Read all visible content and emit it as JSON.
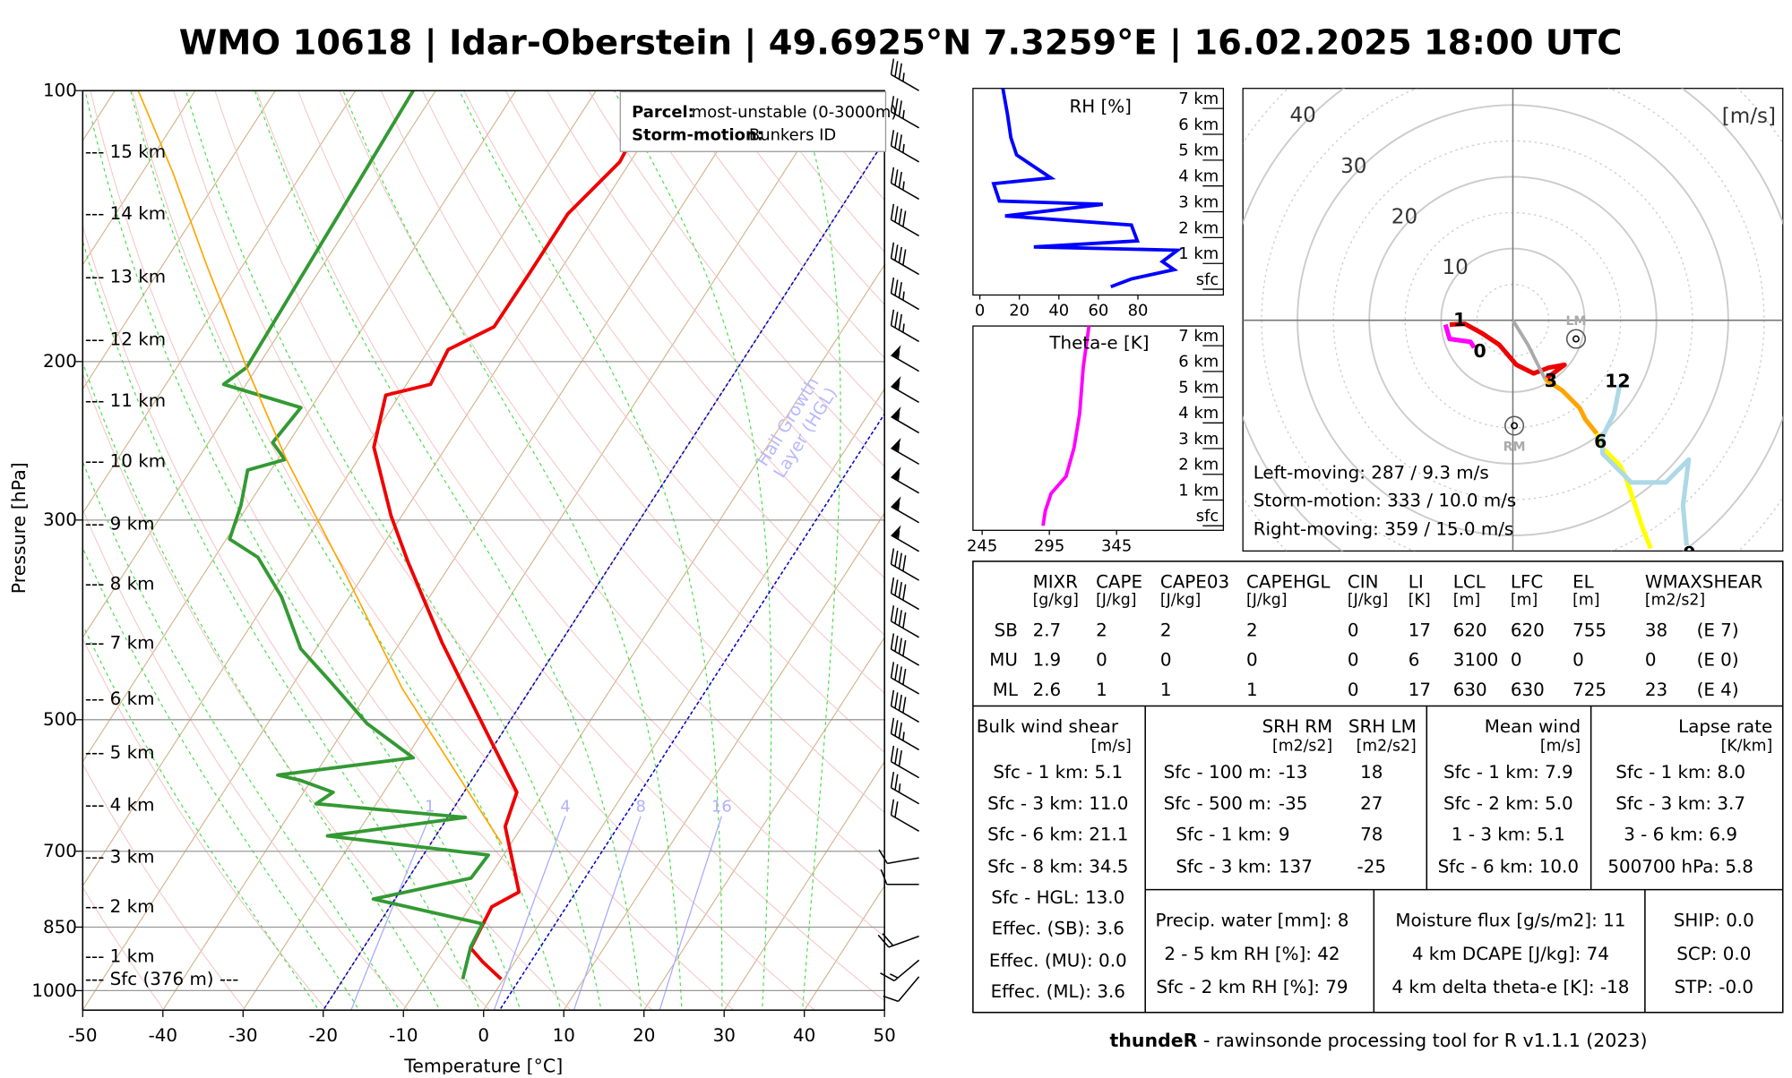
{
  "title": "WMO 10618 | Idar-Oberstein | 49.6925°N 7.3259°E | 16.02.2025 18:00 UTC",
  "footer": {
    "bold": "thundeR",
    "text": " - rawinsonde processing tool for R v1.1.1 (2023)"
  },
  "legend": {
    "parcel_label": "Parcel:",
    "parcel_value": "most-unstable (0-3000m)",
    "storm_label": "Storm-motion:",
    "storm_value": "Bunkers ID"
  },
  "colors": {
    "temperature": "#ee0000",
    "dewpoint": "#339933",
    "parcel": "#ffa500",
    "rh": "#0000ff",
    "theta_e": "#ff00ff",
    "hgl": "#0000cc"
  },
  "chart_data": [
    {
      "type": "line",
      "name": "skewt",
      "xlabel": "Temperature [°C]",
      "ylabel": "Pressure [hPa]",
      "xlim": [
        -50,
        50
      ],
      "ylim": [
        1050,
        100
      ],
      "xticks": [
        "-50",
        "-40",
        "-30",
        "-20",
        "-10",
        "0",
        "10",
        "20",
        "30",
        "40",
        "50"
      ],
      "yticks": [
        "100",
        "200",
        "300",
        "500",
        "700",
        "850",
        "1000"
      ],
      "height_labels": [
        {
          "p": 117,
          "label": "--- 15 km"
        },
        {
          "p": 137,
          "label": "--- 14 km"
        },
        {
          "p": 161,
          "label": "--- 13 km"
        },
        {
          "p": 189,
          "label": "--- 12 km"
        },
        {
          "p": 221,
          "label": "--- 11 km"
        },
        {
          "p": 258,
          "label": "--- 10 km"
        },
        {
          "p": 303,
          "label": "--- 9 km"
        },
        {
          "p": 353,
          "label": "--- 8 km"
        },
        {
          "p": 411,
          "label": "--- 7 km"
        },
        {
          "p": 474,
          "label": "--- 6 km"
        },
        {
          "p": 544,
          "label": "--- 5 km"
        },
        {
          "p": 622,
          "label": "--- 4 km"
        },
        {
          "p": 710,
          "label": "--- 3 km"
        },
        {
          "p": 807,
          "label": "--- 2 km"
        },
        {
          "p": 916,
          "label": "--- 1 km"
        },
        {
          "p": 971,
          "label": "--- Sfc (376 m) ---"
        }
      ],
      "mixing_ratio_labels": [
        "1",
        "4",
        "8",
        "16"
      ],
      "mixing_ratio_values": [
        1,
        4,
        8,
        16
      ],
      "hgl_label": "Hail Growth\nLayer (HGL)",
      "hgl_label_lines": [
        "Hail Growth",
        "Layer (HGL)"
      ],
      "hgl_isotherms": [
        -20,
        2
      ],
      "series": [
        {
          "name": "Temperature",
          "points": [
            [
              971,
              -0.3
            ],
            [
              929,
              -4.0
            ],
            [
              897,
              -6.6
            ],
            [
              807,
              -7.3
            ],
            [
              777,
              -5.1
            ],
            [
              657,
              -12.1
            ],
            [
              602,
              -13.4
            ],
            [
              520,
              -21.6
            ],
            [
              462,
              -28.2
            ],
            [
              411,
              -34.7
            ],
            [
              334,
              -45.5
            ],
            [
              297,
              -51.3
            ],
            [
              249,
              -59.0
            ],
            [
              218,
              -61.7
            ],
            [
              212,
              -57.0
            ],
            [
              194,
              -57.6
            ],
            [
              183,
              -53.7
            ],
            [
              160,
              -53.6
            ],
            [
              137,
              -53.6
            ],
            [
              120,
              -51.3
            ],
            [
              100,
              -52.3
            ]
          ]
        },
        {
          "name": "Dewpoint",
          "points": [
            [
              971,
              -5.1
            ],
            [
              894,
              -6.7
            ],
            [
              843,
              -7.1
            ],
            [
              791,
              -22.7
            ],
            [
              750,
              -12.2
            ],
            [
              707,
              -11.9
            ],
            [
              673,
              -33.5
            ],
            [
              642,
              -17.8
            ],
            [
              620,
              -37.5
            ],
            [
              602,
              -36.3
            ],
            [
              584,
              -41.3
            ],
            [
              576,
              -44.6
            ],
            [
              551,
              -29.1
            ],
            [
              505,
              -37.6
            ],
            [
              449,
              -46.3
            ],
            [
              417,
              -51.9
            ],
            [
              365,
              -58.5
            ],
            [
              330,
              -64.6
            ],
            [
              315,
              -69.6
            ],
            [
              289,
              -70.9
            ],
            [
              264,
              -72.9
            ],
            [
              257,
              -69.1
            ],
            [
              246,
              -72.0
            ],
            [
              225,
              -71.3
            ],
            [
              212,
              -82.8
            ],
            [
              203,
              -81.3
            ],
            [
              131,
              -82.2
            ],
            [
              100,
              -82.8
            ]
          ]
        },
        {
          "name": "Parcel",
          "points": [
            [
              687,
              -11.1
            ],
            [
              462,
              -36.0
            ],
            [
              344,
              -52.4
            ],
            [
              257,
              -68.9
            ],
            [
              203,
              -81.3
            ],
            [
              156,
              -94.6
            ],
            [
              123,
              -106.3
            ],
            [
              100,
              -117.1
            ]
          ]
        }
      ],
      "wind_barbs": [
        {
          "p": 100,
          "spd": 35,
          "dir": 300
        },
        {
          "p": 110,
          "spd": 35,
          "dir": 300
        },
        {
          "p": 120,
          "spd": 35,
          "dir": 300
        },
        {
          "p": 132,
          "spd": 35,
          "dir": 300
        },
        {
          "p": 145,
          "spd": 40,
          "dir": 300
        },
        {
          "p": 160,
          "spd": 40,
          "dir": 300
        },
        {
          "p": 175,
          "spd": 35,
          "dir": 300
        },
        {
          "p": 190,
          "spd": 35,
          "dir": 300
        },
        {
          "p": 205,
          "spd": 55,
          "dir": 300
        },
        {
          "p": 222,
          "spd": 55,
          "dir": 300
        },
        {
          "p": 240,
          "spd": 55,
          "dir": 300
        },
        {
          "p": 260,
          "spd": 55,
          "dir": 300
        },
        {
          "p": 280,
          "spd": 55,
          "dir": 300
        },
        {
          "p": 302,
          "spd": 55,
          "dir": 300
        },
        {
          "p": 325,
          "spd": 55,
          "dir": 300
        },
        {
          "p": 350,
          "spd": 40,
          "dir": 300
        },
        {
          "p": 377,
          "spd": 40,
          "dir": 300
        },
        {
          "p": 405,
          "spd": 40,
          "dir": 300
        },
        {
          "p": 435,
          "spd": 40,
          "dir": 300
        },
        {
          "p": 468,
          "spd": 40,
          "dir": 300
        },
        {
          "p": 503,
          "spd": 40,
          "dir": 300
        },
        {
          "p": 540,
          "spd": 35,
          "dir": 300
        },
        {
          "p": 580,
          "spd": 30,
          "dir": 300
        },
        {
          "p": 620,
          "spd": 25,
          "dir": 300
        },
        {
          "p": 665,
          "spd": 20,
          "dir": 300
        },
        {
          "p": 712,
          "spd": 10,
          "dir": 260
        },
        {
          "p": 762,
          "spd": 10,
          "dir": 270
        },
        {
          "p": 870,
          "spd": 20,
          "dir": 250
        },
        {
          "p": 925,
          "spd": 15,
          "dir": 230
        },
        {
          "p": 965,
          "spd": 10,
          "dir": 220
        }
      ]
    },
    {
      "type": "line",
      "name": "rh_profile",
      "title": "RH [%]",
      "xlim": [
        0,
        100
      ],
      "xticks": [
        "0",
        "20",
        "40",
        "60",
        "80"
      ],
      "yticks": [
        "7 km",
        "6 km",
        "5 km",
        "4 km",
        "3 km",
        "2 km",
        "1 km",
        "sfc"
      ],
      "points": [
        [
          11.6,
          7.38
        ],
        [
          14,
          6.36
        ],
        [
          15.7,
          5.47
        ],
        [
          18.6,
          4.8
        ],
        [
          36,
          3.91
        ],
        [
          7,
          3.69
        ],
        [
          9.9,
          3.02
        ],
        [
          62.2,
          2.89
        ],
        [
          12.8,
          2.44
        ],
        [
          76.7,
          2.09
        ],
        [
          79.7,
          1.47
        ],
        [
          27.3,
          1.24
        ],
        [
          100,
          1.11
        ],
        [
          92.4,
          0.67
        ],
        [
          98.3,
          0.36
        ],
        [
          76.7,
          0
        ],
        [
          66.3,
          -0.3
        ]
      ]
    },
    {
      "type": "line",
      "name": "theta_e_profile",
      "title": "Theta-e [K]",
      "xlim": [
        238,
        425
      ],
      "xticks": [
        "245",
        "295",
        "345"
      ],
      "yticks": [
        "7 km",
        "6 km",
        "5 km",
        "4 km",
        "3 km",
        "2 km",
        "1 km",
        "sfc"
      ],
      "points": [
        [
          324.5,
          7.37
        ],
        [
          320.2,
          5.76
        ],
        [
          317.6,
          3.97
        ],
        [
          313.4,
          2.63
        ],
        [
          307.4,
          1.52
        ],
        [
          296.3,
          0.85
        ],
        [
          292,
          0.18
        ],
        [
          290.3,
          -0.4
        ]
      ]
    },
    {
      "type": "line",
      "name": "hodograph",
      "unit_label": "[m/s]",
      "ring_labels": [
        "10",
        "20",
        "30",
        "40"
      ],
      "series": [
        {
          "name": "0-1 km",
          "color": "#ff00ff",
          "uv": [
            [
              -9.4,
              -0.6
            ],
            [
              -8.8,
              -2.6
            ],
            [
              -5.9,
              -3.0
            ],
            [
              -5.4,
              -3.8
            ]
          ]
        },
        {
          "name": "1-3 km",
          "color": "#ee0000",
          "uv": [
            [
              -8.8,
              -0.6
            ],
            [
              -6.7,
              -0.5
            ],
            [
              -4.3,
              -1.8
            ],
            [
              -1.9,
              -3.4
            ],
            [
              0.5,
              -6.2
            ],
            [
              2.9,
              -7.4
            ],
            [
              5.0,
              -6.6
            ],
            [
              7.2,
              -6.2
            ],
            [
              5.6,
              -7.4
            ],
            [
              4.5,
              -8.2
            ]
          ]
        },
        {
          "name": "shear",
          "color": "#aaaaaa",
          "uv": [
            [
              0,
              0
            ],
            [
              2.1,
              -3.4
            ],
            [
              4.5,
              -8.2
            ]
          ]
        },
        {
          "name": "3-6 km",
          "color": "#ffa500",
          "uv": [
            [
              4.5,
              -8.2
            ],
            [
              6.9,
              -9.8
            ],
            [
              9.3,
              -12.2
            ],
            [
              10.1,
              -13.8
            ],
            [
              11.7,
              -15.8
            ]
          ]
        },
        {
          "name": "6-9 km",
          "color": "#ffff00",
          "uv": [
            [
              11.7,
              -15.8
            ],
            [
              12.5,
              -17.8
            ],
            [
              14.9,
              -20.2
            ],
            [
              15.7,
              -21.8
            ],
            [
              16.5,
              -24.2
            ],
            [
              18.1,
              -29
            ],
            [
              19.2,
              -31.8
            ]
          ]
        },
        {
          "name": "9-12 km",
          "color": "#add8e6",
          "uv": [
            [
              14.9,
              -9
            ],
            [
              14.1,
              -13
            ],
            [
              12.5,
              -16.2
            ],
            [
              12.5,
              -18.6
            ],
            [
              16.5,
              -22.6
            ],
            [
              21.3,
              -22.6
            ],
            [
              24.5,
              -19.4
            ],
            [
              23.7,
              -25.8
            ],
            [
              24.2,
              -31.4
            ]
          ]
        }
      ],
      "height_marks": [
        {
          "label": "1",
          "u": -7.4,
          "v": 0.2
        },
        {
          "label": "0",
          "u": -4.6,
          "v": -4.2
        },
        {
          "label": "3",
          "u": 5.3,
          "v": -8.3
        },
        {
          "label": "6",
          "u": 12.2,
          "v": -16.8
        },
        {
          "label": "12",
          "u": 14.6,
          "v": -8.4
        },
        {
          "label": "9",
          "u": 24.6,
          "v": -32.4
        }
      ],
      "markers": [
        {
          "label": "LM",
          "u": 8.8,
          "v": -2.6
        },
        {
          "label": "RM",
          "u": 0.2,
          "v": -14.7
        }
      ],
      "summary": [
        "Left-moving: 287 / 9.3 m/s",
        "Storm-motion: 333 / 10.0 m/s",
        "Right-moving: 359 / 15.0 m/s"
      ]
    }
  ],
  "params": {
    "headers": [
      "MIXR",
      "CAPE",
      "CAPE03",
      "CAPEHGL",
      "CIN",
      "LI",
      "LCL",
      "LFC",
      "EL",
      "WMAXSHEAR"
    ],
    "units": [
      "[g/kg]",
      "[J/kg]",
      "[J/kg]",
      "[J/kg]",
      "[J/kg]",
      "[K]",
      "[m]",
      "[m]",
      "[m]",
      "[m2/s2]"
    ],
    "rows": [
      {
        "label": "SB",
        "values": [
          "2.7",
          "2",
          "2",
          "2",
          "0",
          "17",
          "620",
          "620",
          "755",
          "38"
        ],
        "extra": "(E 7)"
      },
      {
        "label": "MU",
        "values": [
          "1.9",
          "0",
          "0",
          "0",
          "0",
          "6",
          "3100",
          "0",
          "0",
          "0"
        ],
        "extra": "(E 0)"
      },
      {
        "label": "ML",
        "values": [
          "2.6",
          "1",
          "1",
          "1",
          "0",
          "17",
          "630",
          "630",
          "725",
          "23"
        ],
        "extra": "(E 4)"
      }
    ]
  },
  "bulk_shear": {
    "title": "Bulk wind shear",
    "unit": "[m/s]",
    "rows": [
      "Sfc - 1 km: 5.1",
      "Sfc - 3 km: 11.0",
      "Sfc - 6 km: 21.1",
      "Sfc - 8 km: 34.5",
      "Sfc - HGL: 13.0",
      "Effec. (SB): 3.6",
      "Effec. (MU): 0.0",
      "Effec. (ML): 3.6"
    ]
  },
  "srh": {
    "title_rm": "SRH RM",
    "title_lm": "SRH LM",
    "unit_rm": "[m2/s2]",
    "unit_lm": "[m2/s2]",
    "rows": [
      {
        "label": "Sfc - 100 m:",
        "rm": "-13",
        "lm": "18"
      },
      {
        "label": "Sfc - 500 m:",
        "rm": "-35",
        "lm": "27"
      },
      {
        "label": "Sfc - 1 km:",
        "rm": "9",
        "lm": "78"
      },
      {
        "label": "Sfc - 3 km:",
        "rm": "137",
        "lm": "-25"
      }
    ]
  },
  "mean_wind": {
    "title": "Mean wind",
    "unit": "[m/s]",
    "rows": [
      "Sfc - 1 km: 7.9",
      "Sfc - 2 km: 5.0",
      "1 - 3 km: 5.1",
      "Sfc - 6 km: 10.0"
    ]
  },
  "lapse_rate": {
    "title": "Lapse rate",
    "unit": "[K/km]",
    "rows": [
      "Sfc - 1 km: 8.0",
      "Sfc - 3 km: 3.7",
      "3 - 6 km: 6.9",
      "500700 hPa: 5.8"
    ]
  },
  "moisture": {
    "rows": [
      "Precip. water [mm]: 8",
      "2 - 5 km RH [%]: 42",
      "Sfc - 2 km RH [%]: 79"
    ]
  },
  "flux": {
    "rows": [
      "Moisture flux [g/s/m2]: 11",
      "4 km DCAPE [J/kg]: 74",
      "4 km delta theta-e [K]: -18"
    ]
  },
  "composite": {
    "rows": [
      "SHIP: 0.0",
      "SCP: 0.0",
      "STP: -0.0"
    ]
  }
}
